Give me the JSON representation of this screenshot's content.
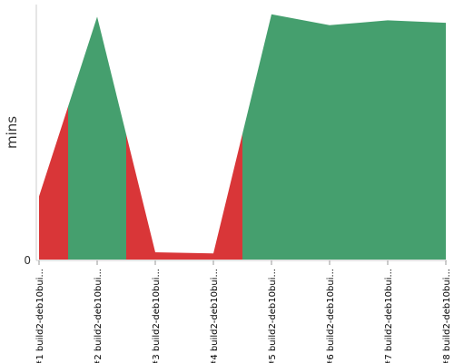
{
  "chart_data": {
    "type": "area",
    "ylabel": "mins",
    "xlabel": "",
    "y_tick_labels": [
      "0"
    ],
    "ylim": [
      0,
      21
    ],
    "grid": false,
    "categories": [
      "#1 build2-deb10bui...",
      "#2 build2-deb10bui...",
      "#3 build2-deb10bui...",
      "#4 build2-deb10bui...",
      "#5 build2-deb10bui...",
      "#6 build2-deb10bui...",
      "#7 build2-deb10bui...",
      "#8 build2-deb10bui..."
    ],
    "values": [
      5.2,
      20,
      0.6,
      0.5,
      20.2,
      19.3,
      19.7,
      19.5
    ],
    "status": [
      "failure",
      "success",
      "failure",
      "failure",
      "success",
      "success",
      "success",
      "success"
    ],
    "colors": {
      "success": "#459f6e",
      "failure": "#d93638"
    }
  }
}
